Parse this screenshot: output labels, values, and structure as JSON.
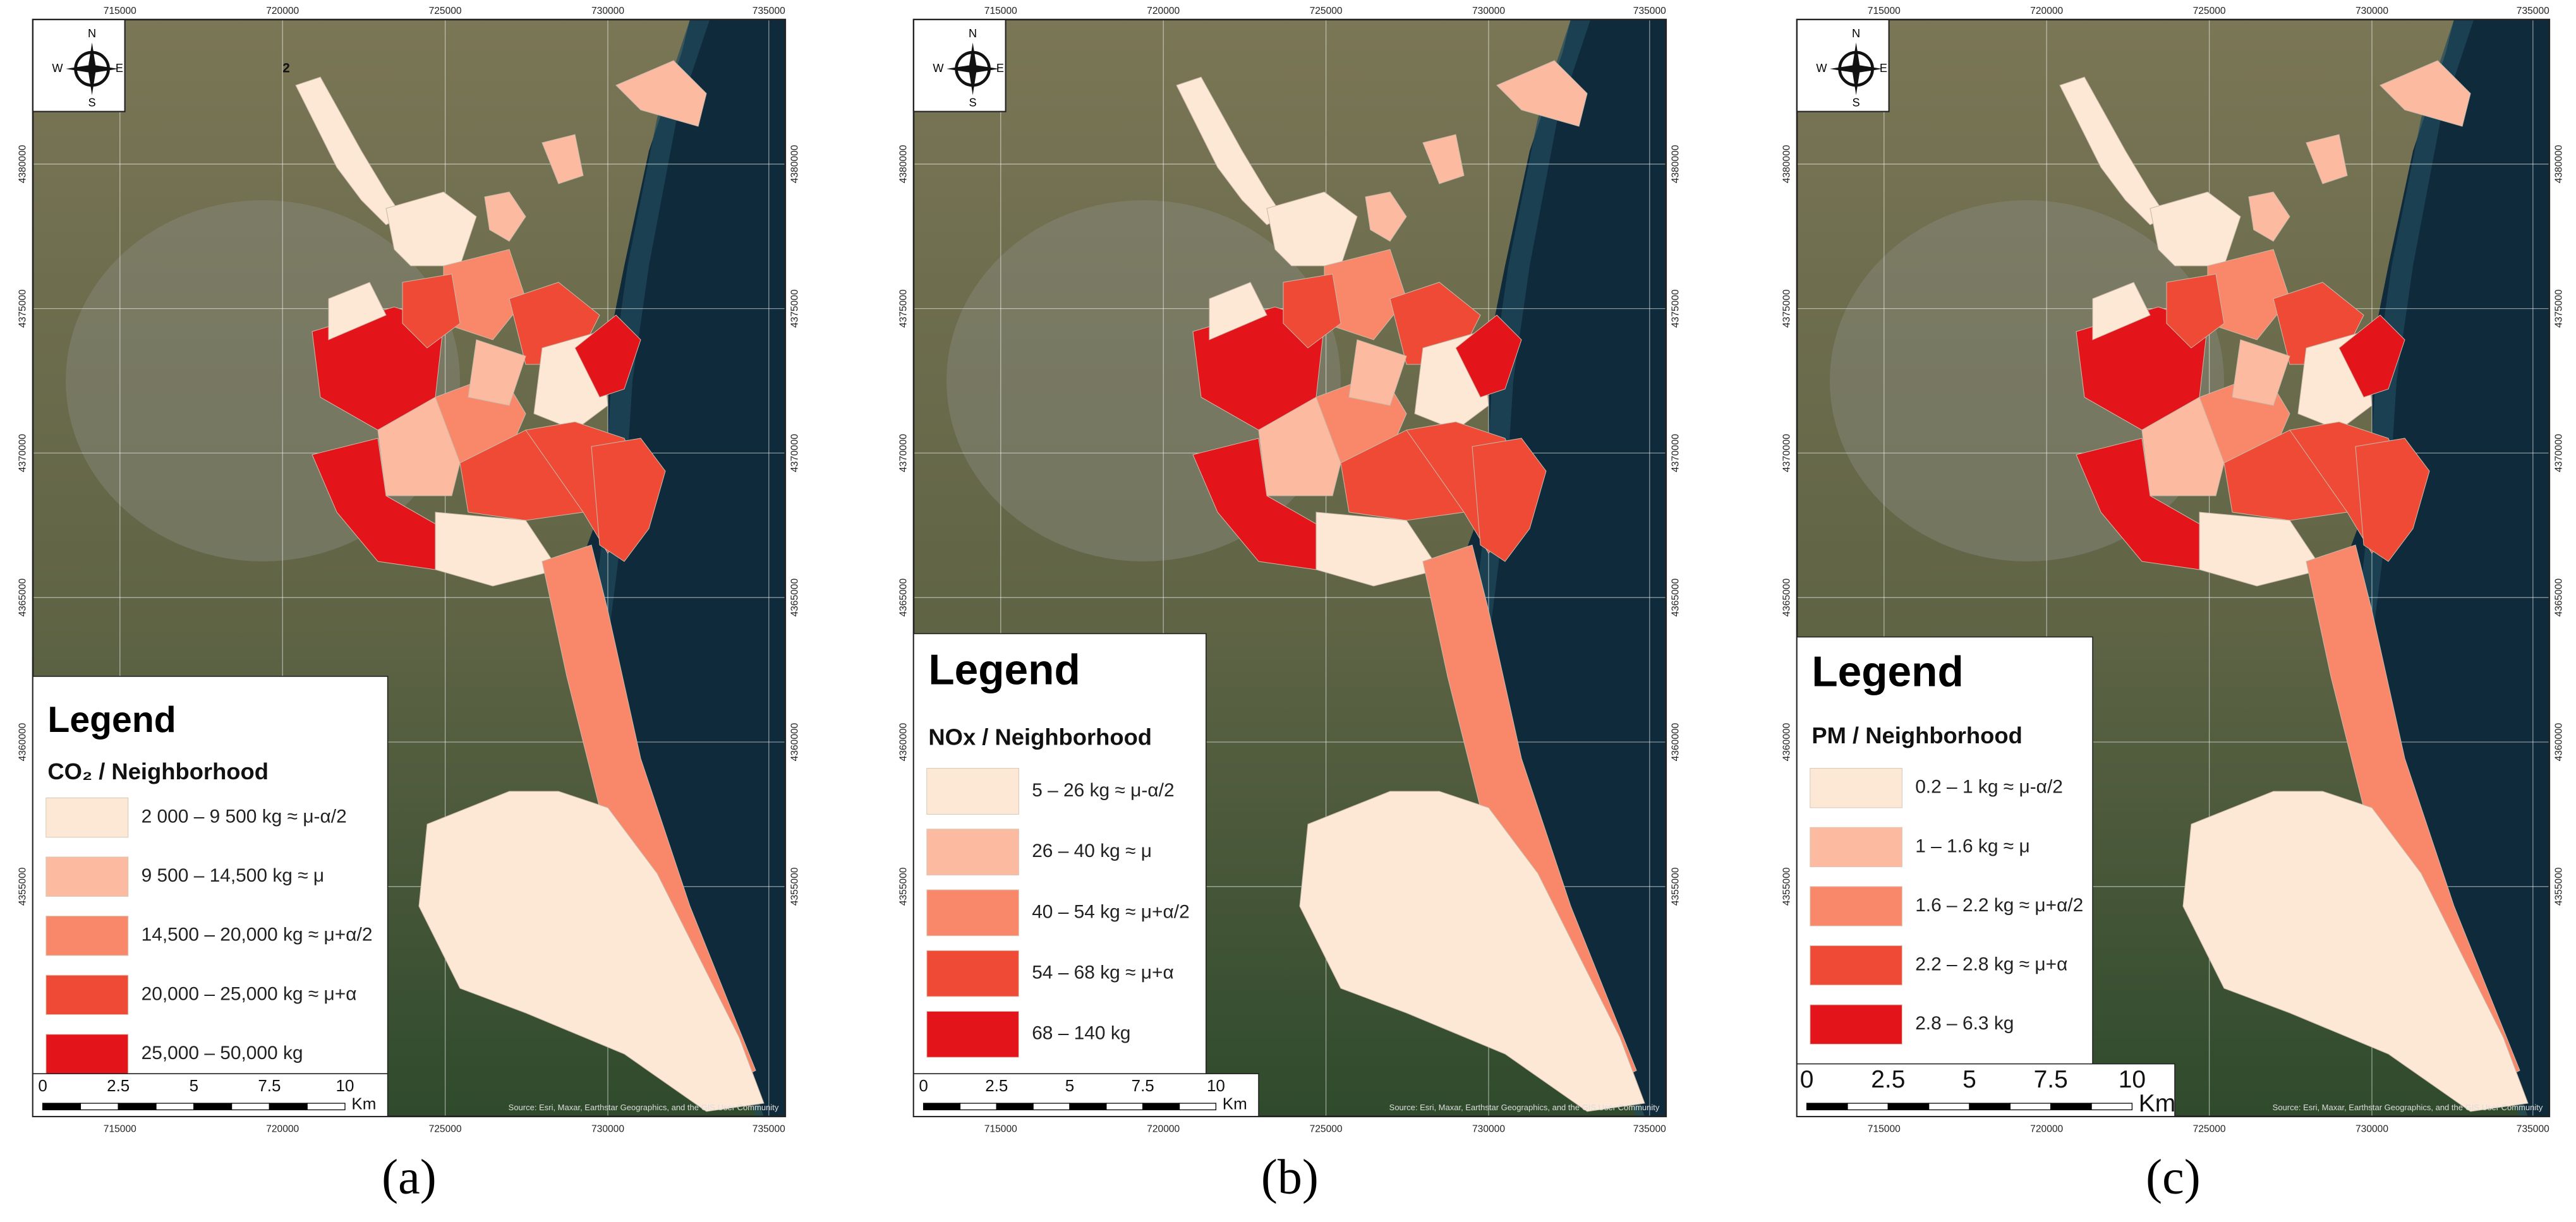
{
  "panels": [
    {
      "caption": "(a)",
      "annotation": "2",
      "legend": {
        "title": "Legend",
        "subtitle": "CO₂ / Neighborhood",
        "items": [
          {
            "label": "2 000 – 9 500 kg ≈ μ-α/2",
            "color": "#fde8d6"
          },
          {
            "label": "9 500 – 14,500 kg ≈ μ",
            "color": "#fcbba1"
          },
          {
            "label": "14,500 – 20,000 kg ≈ μ+α/2",
            "color": "#f9886a"
          },
          {
            "label": "20,000 – 25,000 kg ≈ μ+α",
            "color": "#ee4a35"
          },
          {
            "label": "25,000 – 50,000 kg",
            "color": "#e3141a"
          }
        ]
      }
    },
    {
      "caption": "(b)",
      "legend": {
        "title": "Legend",
        "subtitle": "NOx / Neighborhood",
        "items": [
          {
            "label": "5 – 26 kg ≈ μ-α/2",
            "color": "#fde8d6"
          },
          {
            "label": "26 – 40 kg ≈ μ",
            "color": "#fcbba1"
          },
          {
            "label": "40 – 54 kg ≈ μ+α/2",
            "color": "#f9886a"
          },
          {
            "label": "54 – 68 kg ≈ μ+α",
            "color": "#ee4a35"
          },
          {
            "label": "68 – 140 kg",
            "color": "#e3141a"
          }
        ]
      }
    },
    {
      "caption": "(c)",
      "legend": {
        "title": "Legend",
        "subtitle": "PM / Neighborhood",
        "items": [
          {
            "label": "0.2 – 1 kg ≈ μ-α/2",
            "color": "#fde8d6"
          },
          {
            "label": "1 – 1.6 kg ≈ μ",
            "color": "#fcbba1"
          },
          {
            "label": "1.6 – 2.2 kg ≈ μ+α/2",
            "color": "#f9886a"
          },
          {
            "label": "2.2 – 2.8 kg ≈ μ+α",
            "color": "#ee4a35"
          },
          {
            "label": "2.8 – 6.3 kg",
            "color": "#e3141a"
          }
        ]
      }
    }
  ],
  "compass": {
    "north": "N",
    "south": "S",
    "east": "E",
    "west": "W"
  },
  "scale_bar": {
    "labels": [
      "0",
      "2.5",
      "5",
      "7.5",
      "10"
    ],
    "unit": "Km"
  },
  "easting_labels": [
    "715000",
    "720000",
    "725000",
    "730000",
    "735000"
  ],
  "northing_labels": [
    "4380000",
    "4375000",
    "4370000",
    "4365000",
    "4360000",
    "4355000"
  ],
  "attribution": "Source: Esri, Maxar, Earthstar Geographics, and the GIS User Community"
}
